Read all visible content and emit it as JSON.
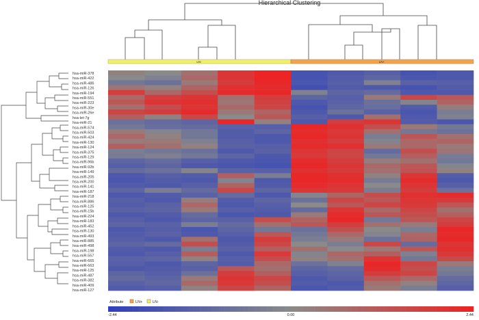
{
  "chart_data": {
    "type": "heatmap",
    "title": "Hierarchical Clustering",
    "column_groups": [
      {
        "label": "LN-",
        "columns": 5,
        "color": "#f1ee6a"
      },
      {
        "label": "LN+",
        "columns": 5,
        "color": "#f5a24d"
      }
    ],
    "row_labels": [
      "hsa-miR-378",
      "hsa-miR-422",
      "hsa-miR-486",
      "hsa-miR-126",
      "hsa-miR-194",
      "hsa-miR-551",
      "hsa-miR-223",
      "hsa-miR-30e",
      "hsa-miR-26e",
      "hsa-let-7g",
      "hsa-miR-21",
      "hsa-miR-574",
      "hsa-miR-503",
      "hsa-miR-424",
      "hsa-miR-130",
      "hsa-miR-124",
      "hsa-miR-375",
      "hsa-miR-129",
      "hsa-miR-96b",
      "hsa-miR-92b",
      "hsa-miR-149",
      "hsa-miR-205",
      "hsa-miR-200",
      "hsa-miR-141",
      "hsa-miR-187",
      "hsa-miR-218",
      "hsa-miR-886",
      "hsa-miR-125",
      "hsa-miR-15b",
      "hsa-miR-224",
      "hsa-miR-183",
      "hsa-miR-452",
      "hsa-miR-130",
      "hsa-miR-493",
      "hsa-miR-885",
      "hsa-miR-498",
      "hsa-miR-198",
      "hsa-miR-557",
      "hsa-miR-665",
      "hsa-miR-663",
      "hsa-miR-125",
      "hsa-miR-487",
      "hsa-miR-382",
      "hsa-miR-409",
      "hsa-miR-127"
    ],
    "row_values": [
      [
        0.2,
        0.0,
        0.6,
        2.0,
        2.4,
        -1.8,
        -1.6,
        -1.4,
        -1.8,
        -1.6
      ],
      [
        0.0,
        -0.3,
        0.8,
        2.0,
        2.4,
        -1.8,
        -1.5,
        -1.2,
        -1.7,
        -1.6
      ],
      [
        -0.6,
        -0.8,
        0.4,
        1.8,
        2.3,
        -1.7,
        -1.4,
        -0.3,
        -1.3,
        -1.4
      ],
      [
        0.5,
        0.2,
        0.9,
        2.1,
        2.2,
        -1.9,
        -1.5,
        -1.6,
        -1.8,
        -1.5
      ],
      [
        1.8,
        0.8,
        1.4,
        2.2,
        2.3,
        -0.3,
        -1.2,
        -1.0,
        -1.6,
        -1.6
      ],
      [
        0.8,
        1.8,
        2.0,
        0.6,
        1.8,
        -1.2,
        -1.4,
        0.4,
        1.6,
        1.2
      ],
      [
        1.2,
        2.0,
        2.1,
        0.5,
        1.7,
        -1.6,
        -1.3,
        -0.8,
        -0.2,
        0.9
      ],
      [
        0.6,
        1.4,
        2.0,
        0.8,
        1.6,
        -1.8,
        -1.2,
        -0.9,
        -1.5,
        0.3
      ],
      [
        1.6,
        1.8,
        2.2,
        0.4,
        0.9,
        -1.6,
        -0.8,
        -1.3,
        -1.7,
        -0.4
      ],
      [
        1.0,
        0.2,
        1.6,
        0.0,
        1.2,
        -1.4,
        -1.6,
        0.6,
        -1.6,
        -0.3
      ],
      [
        -0.8,
        -1.0,
        -1.2,
        2.3,
        0.2,
        -1.6,
        1.8,
        2.0,
        -1.5,
        -1.7
      ],
      [
        -0.6,
        -0.9,
        -1.0,
        -1.3,
        -1.4,
        2.3,
        2.1,
        1.4,
        0.4,
        -0.6
      ],
      [
        0.4,
        -0.2,
        -0.6,
        -1.5,
        -1.2,
        2.2,
        1.9,
        0.6,
        -0.6,
        -0.8
      ],
      [
        0.8,
        0.2,
        -0.6,
        -1.5,
        -1.6,
        2.3,
        2.0,
        -0.4,
        1.2,
        0.6
      ],
      [
        0.3,
        0.4,
        -0.3,
        -1.4,
        -1.6,
        2.1,
        1.8,
        -0.2,
        0.8,
        0.9
      ],
      [
        1.0,
        0.6,
        0.2,
        -1.3,
        -1.4,
        2.2,
        2.1,
        0.4,
        0.8,
        0.4
      ],
      [
        -0.4,
        -0.6,
        -0.8,
        -1.6,
        -1.3,
        2.0,
        1.6,
        -1.0,
        1.4,
        0.5
      ],
      [
        -0.5,
        -0.3,
        -0.6,
        -1.2,
        -1.6,
        1.9,
        1.6,
        -0.6,
        1.0,
        -0.5
      ],
      [
        -1.2,
        -1.0,
        -1.4,
        -1.6,
        -1.7,
        2.2,
        1.8,
        0.3,
        0.6,
        -0.6
      ],
      [
        -1.4,
        -1.2,
        -1.6,
        -1.7,
        -1.8,
        2.3,
        2.0,
        0.8,
        1.2,
        -0.2
      ],
      [
        -1.0,
        -0.8,
        -0.2,
        -1.3,
        -1.4,
        2.1,
        1.9,
        0.6,
        1.3,
        0.2
      ],
      [
        -1.6,
        -1.4,
        -1.5,
        1.0,
        -0.4,
        2.3,
        2.1,
        0.2,
        2.0,
        -1.5
      ],
      [
        -1.7,
        -1.5,
        -1.6,
        -0.2,
        -1.6,
        2.3,
        2.2,
        -0.5,
        2.2,
        -1.6
      ],
      [
        -1.5,
        -1.6,
        -1.4,
        0.9,
        -1.5,
        2.2,
        2.0,
        0.0,
        2.0,
        -1.4
      ],
      [
        -1.2,
        -0.4,
        -1.0,
        1.6,
        -1.2,
        2.0,
        1.9,
        -0.4,
        1.8,
        -0.8
      ],
      [
        -1.6,
        -1.5,
        -1.3,
        -1.0,
        -1.6,
        -0.2,
        0.9,
        1.4,
        2.1,
        2.2
      ],
      [
        -1.4,
        -1.6,
        0.3,
        -1.5,
        -1.2,
        -0.8,
        1.6,
        1.2,
        2.0,
        1.9
      ],
      [
        -1.5,
        -1.3,
        0.8,
        -1.6,
        -1.4,
        0.0,
        1.2,
        1.6,
        1.9,
        1.2
      ],
      [
        -1.3,
        -1.2,
        0.4,
        -1.4,
        -1.5,
        -1.0,
        2.0,
        0.8,
        1.6,
        0.6
      ],
      [
        -1.6,
        -1.5,
        -1.0,
        -1.7,
        -1.6,
        0.4,
        2.2,
        1.2,
        1.4,
        1.0
      ],
      [
        -1.4,
        -1.6,
        -1.2,
        -1.3,
        1.4,
        0.9,
        2.3,
        -0.6,
        1.2,
        1.6
      ],
      [
        -1.2,
        -1.3,
        -0.4,
        -1.0,
        0.6,
        1.2,
        1.8,
        0.6,
        0.4,
        1.8
      ],
      [
        -1.6,
        -1.4,
        -1.7,
        -1.2,
        -0.6,
        -0.8,
        1.4,
        0.0,
        -0.4,
        2.3
      ],
      [
        -1.5,
        -1.3,
        -1.6,
        -1.4,
        1.2,
        -0.6,
        0.8,
        -0.2,
        0.8,
        2.2
      ],
      [
        -1.4,
        -1.6,
        0.6,
        -1.6,
        1.8,
        -0.4,
        0.4,
        -0.8,
        0.9,
        2.3
      ],
      [
        -1.2,
        -1.0,
        1.4,
        -1.5,
        1.6,
        0.0,
        -0.4,
        1.6,
        -1.0,
        2.0
      ],
      [
        -1.5,
        -1.6,
        -0.4,
        -1.3,
        1.0,
        0.6,
        0.0,
        0.4,
        1.2,
        2.1
      ],
      [
        -1.6,
        -1.4,
        1.0,
        -1.6,
        1.9,
        -0.2,
        0.8,
        1.0,
        -0.3,
        1.9
      ],
      [
        -1.3,
        -1.2,
        0.2,
        -1.4,
        1.4,
        0.2,
        0.6,
        2.0,
        -0.6,
        1.5
      ],
      [
        -1.4,
        -1.6,
        -1.2,
        -1.5,
        0.8,
        -0.8,
        -0.3,
        2.3,
        1.6,
        0.4
      ],
      [
        -1.6,
        -1.5,
        -1.3,
        1.2,
        0.6,
        -1.2,
        -1.0,
        2.2,
        1.4,
        -0.4
      ],
      [
        -1.2,
        -1.4,
        -0.8,
        1.8,
        1.0,
        -1.4,
        -1.2,
        1.8,
        1.6,
        -0.6
      ],
      [
        -1.0,
        -1.2,
        0.4,
        2.0,
        1.6,
        -1.6,
        -1.3,
        1.2,
        0.8,
        -1.0
      ],
      [
        -1.3,
        -1.1,
        0.8,
        1.9,
        1.4,
        -1.5,
        -1.6,
        0.6,
        0.2,
        -1.2
      ],
      [
        -1.5,
        -1.4,
        0.2,
        1.6,
        0.9,
        -1.7,
        -1.5,
        0.4,
        -0.4,
        -1.4
      ]
    ],
    "color_scale": {
      "min": -2.44,
      "mid": 0,
      "max": 2.44,
      "min_label": "-2.44",
      "mid_label": "0.00",
      "max_label": "2.44",
      "low_color": "#2f3fbd",
      "mid_color": "#8a8a8a",
      "high_color": "#ee2222"
    },
    "legend": {
      "title": "Attribute",
      "items": [
        {
          "label": "LN+",
          "color": "#f5a24d"
        },
        {
          "label": "LN-",
          "color": "#f1ee6a"
        }
      ]
    }
  }
}
